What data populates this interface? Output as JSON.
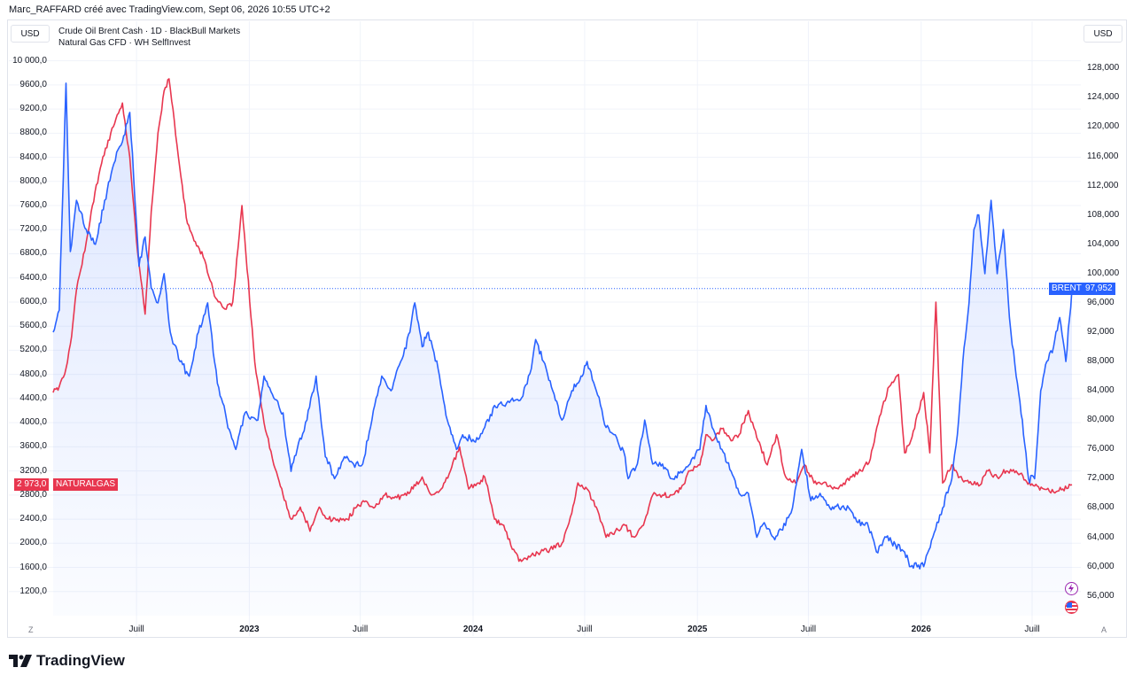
{
  "header": {
    "caption": "Marc_RAFFARD créé avec TradingView.com, Sept 06, 2026 10:55 UTC+2"
  },
  "currency": {
    "left": "USD",
    "right": "USD"
  },
  "legend": {
    "line1": "Crude Oil Brent Cash · 1D · BlackBull Markets",
    "line2": "Natural Gas CFD · WH SelfInvest"
  },
  "corners": {
    "left": "Z",
    "right": "A"
  },
  "brand": {
    "name": "TradingView"
  },
  "tags": {
    "brent_name": "BRENT",
    "brent_value": "97,952",
    "gas_value": "2 973,0",
    "gas_name": "NATURALGAS"
  },
  "colors": {
    "brent": "#2962ff",
    "gas": "#e8364f",
    "fill": "#eef2ff",
    "grid": "#f0f3fa",
    "axis": "#131722"
  },
  "chart_data": {
    "type": "line",
    "title": "",
    "left_axis": {
      "series": "Natural Gas CFD",
      "ylim": [
        800,
        10200
      ],
      "ticks": [
        1200,
        1600,
        2000,
        2400,
        2800,
        3200,
        3600,
        4000,
        4400,
        4800,
        5200,
        5600,
        6000,
        6400,
        6800,
        7200,
        7600,
        8000,
        8400,
        8800,
        9200,
        9600,
        10000
      ],
      "tick_labels": [
        "1200,0",
        "1600,0",
        "2000,0",
        "2400,0",
        "2800,0",
        "3200,0",
        "3600,0",
        "4000,0",
        "4400,0",
        "4800,0",
        "5200,0",
        "5600,0",
        "6000,0",
        "6400,0",
        "6800,0",
        "7200,0",
        "7600,0",
        "8000,0",
        "8400,0",
        "8800,0",
        "9200,0",
        "9600,0",
        "10 000,0"
      ]
    },
    "right_axis": {
      "series": "Crude Oil Brent Cash",
      "ylim": [
        53.3,
        130.7
      ],
      "ticks": [
        56,
        60,
        64,
        68,
        72,
        76,
        80,
        84,
        88,
        92,
        96,
        100,
        104,
        108,
        112,
        116,
        120,
        124,
        128
      ],
      "tick_labels": [
        "56,000",
        "60,000",
        "64,000",
        "68,000",
        "72,000",
        "76,000",
        "80,000",
        "84,000",
        "88,000",
        "92,000",
        "96,000",
        "100,000",
        "104,000",
        "108,000",
        "112,000",
        "116,000",
        "120,000",
        "124,000",
        "128,000"
      ]
    },
    "x_axis": {
      "tick_labels": [
        "Juill",
        "2023",
        "Juill",
        "2024",
        "Juill",
        "2025",
        "Juill",
        "2026",
        "Juill"
      ],
      "tick_dates": [
        "2022-07-01",
        "2023-01-01",
        "2023-07-01",
        "2024-01-01",
        "2024-07-01",
        "2025-01-01",
        "2025-07-01",
        "2026-01-01",
        "2026-07-01"
      ],
      "range": [
        "2022-02-15",
        "2026-09-04"
      ]
    },
    "grid": true,
    "series": [
      {
        "name": "Crude Oil Brent Cash",
        "axis": "right",
        "color": "#2962ff",
        "last": 97.952,
        "x": [
          "2022-02-15",
          "2022-02-25",
          "2022-03-08",
          "2022-03-15",
          "2022-03-25",
          "2022-04-10",
          "2022-04-25",
          "2022-05-10",
          "2022-05-25",
          "2022-06-08",
          "2022-06-20",
          "2022-07-05",
          "2022-07-15",
          "2022-07-25",
          "2022-08-05",
          "2022-08-15",
          "2022-08-25",
          "2022-09-10",
          "2022-09-25",
          "2022-10-10",
          "2022-10-25",
          "2022-11-10",
          "2022-11-25",
          "2022-12-10",
          "2022-12-25",
          "2023-01-15",
          "2023-01-25",
          "2023-02-10",
          "2023-02-25",
          "2023-03-10",
          "2023-03-20",
          "2023-04-05",
          "2023-04-20",
          "2023-05-05",
          "2023-05-20",
          "2023-06-05",
          "2023-06-20",
          "2023-07-05",
          "2023-07-20",
          "2023-08-05",
          "2023-08-20",
          "2023-09-05",
          "2023-09-20",
          "2023-09-28",
          "2023-10-10",
          "2023-10-20",
          "2023-11-05",
          "2023-11-20",
          "2023-12-05",
          "2023-12-15",
          "2024-01-05",
          "2024-01-20",
          "2024-02-05",
          "2024-02-20",
          "2024-03-05",
          "2024-03-20",
          "2024-04-05",
          "2024-04-12",
          "2024-04-25",
          "2024-05-10",
          "2024-05-25",
          "2024-06-10",
          "2024-06-25",
          "2024-07-05",
          "2024-07-20",
          "2024-08-05",
          "2024-08-20",
          "2024-09-05",
          "2024-09-10",
          "2024-09-25",
          "2024-10-07",
          "2024-10-20",
          "2024-11-05",
          "2024-11-20",
          "2024-12-05",
          "2024-12-20",
          "2025-01-05",
          "2025-01-15",
          "2025-01-25",
          "2025-02-10",
          "2025-02-25",
          "2025-03-10",
          "2025-03-25",
          "2025-04-08",
          "2025-04-20",
          "2025-05-05",
          "2025-05-20",
          "2025-06-05",
          "2025-06-20",
          "2025-07-05",
          "2025-07-20",
          "2025-08-05",
          "2025-08-20",
          "2025-09-05",
          "2025-09-20",
          "2025-10-05",
          "2025-10-20",
          "2025-11-05",
          "2025-11-20",
          "2025-12-05",
          "2025-12-15",
          "2026-01-05",
          "2026-01-20",
          "2026-02-05",
          "2026-02-20",
          "2026-03-01",
          "2026-03-10",
          "2026-03-20",
          "2026-03-28",
          "2026-04-05",
          "2026-04-15",
          "2026-04-25",
          "2026-05-05",
          "2026-05-15",
          "2026-05-25",
          "2026-06-05",
          "2026-06-15",
          "2026-06-25",
          "2026-07-05",
          "2026-07-15",
          "2026-07-25",
          "2026-08-05",
          "2026-08-15",
          "2026-08-25",
          "2026-09-04"
        ],
        "y": [
          92,
          95,
          126,
          103,
          110,
          106,
          104,
          110,
          115,
          118,
          122,
          101,
          105,
          98,
          96,
          100,
          92,
          88,
          86,
          92,
          96,
          85,
          80,
          76,
          81,
          80,
          86,
          83,
          81,
          73,
          76,
          80,
          86,
          75,
          72,
          75,
          74,
          74,
          80,
          86,
          84,
          88,
          92,
          96,
          90,
          92,
          87,
          80,
          76,
          78,
          77,
          79,
          82,
          82,
          83,
          83,
          87,
          91,
          88,
          84,
          80,
          84,
          86,
          88,
          84,
          79,
          78,
          75,
          72,
          74,
          80,
          74,
          74,
          72,
          73,
          74,
          76,
          82,
          79,
          76,
          73,
          70,
          70,
          64,
          66,
          64,
          65,
          68,
          76,
          69,
          70,
          68,
          68,
          68,
          66,
          66,
          62,
          64,
          63,
          62,
          60,
          60,
          64,
          68,
          72,
          78,
          88,
          96,
          106,
          108,
          100,
          110,
          100,
          106,
          94,
          86,
          80,
          72,
          72,
          84,
          88,
          90,
          94,
          88,
          97.952
        ]
      },
      {
        "name": "Natural Gas CFD",
        "axis": "left",
        "color": "#e8364f",
        "last": 2973.0,
        "x": [
          "2022-02-15",
          "2022-02-25",
          "2022-03-08",
          "2022-03-15",
          "2022-03-25",
          "2022-04-10",
          "2022-04-20",
          "2022-05-05",
          "2022-05-20",
          "2022-06-08",
          "2022-06-20",
          "2022-07-01",
          "2022-07-15",
          "2022-07-25",
          "2022-08-05",
          "2022-08-15",
          "2022-08-23",
          "2022-09-05",
          "2022-09-20",
          "2022-10-05",
          "2022-10-20",
          "2022-11-05",
          "2022-11-20",
          "2022-12-05",
          "2022-12-20",
          "2023-01-10",
          "2023-01-25",
          "2023-02-10",
          "2023-02-25",
          "2023-03-10",
          "2023-03-25",
          "2023-04-10",
          "2023-04-25",
          "2023-05-10",
          "2023-05-25",
          "2023-06-10",
          "2023-06-25",
          "2023-07-10",
          "2023-07-25",
          "2023-08-10",
          "2023-08-25",
          "2023-09-10",
          "2023-09-25",
          "2023-10-10",
          "2023-10-25",
          "2023-11-10",
          "2023-11-25",
          "2023-12-10",
          "2023-12-25",
          "2024-01-10",
          "2024-01-20",
          "2024-02-05",
          "2024-02-20",
          "2024-03-05",
          "2024-03-20",
          "2024-04-05",
          "2024-04-20",
          "2024-05-10",
          "2024-05-25",
          "2024-06-10",
          "2024-06-20",
          "2024-07-05",
          "2024-07-20",
          "2024-08-05",
          "2024-08-20",
          "2024-09-05",
          "2024-09-20",
          "2024-10-05",
          "2024-10-20",
          "2024-11-05",
          "2024-11-20",
          "2024-12-05",
          "2024-12-20",
          "2025-01-05",
          "2025-01-15",
          "2025-01-25",
          "2025-02-10",
          "2025-02-25",
          "2025-03-10",
          "2025-03-25",
          "2025-04-10",
          "2025-04-25",
          "2025-05-10",
          "2025-05-25",
          "2025-06-10",
          "2025-06-25",
          "2025-07-10",
          "2025-07-25",
          "2025-08-10",
          "2025-08-25",
          "2025-09-10",
          "2025-09-25",
          "2025-10-10",
          "2025-10-25",
          "2025-11-10",
          "2025-11-25",
          "2025-12-05",
          "2025-12-15",
          "2026-01-05",
          "2026-01-15",
          "2026-01-25",
          "2026-02-05",
          "2026-02-20",
          "2026-03-05",
          "2026-03-20",
          "2026-04-05",
          "2026-04-20",
          "2026-05-05",
          "2026-05-20",
          "2026-06-05",
          "2026-06-20",
          "2026-07-05",
          "2026-07-20",
          "2026-08-05",
          "2026-08-20",
          "2026-09-04"
        ],
        "y": [
          4500,
          4600,
          4900,
          5300,
          6200,
          7000,
          7600,
          8300,
          8800,
          9300,
          8400,
          7000,
          5800,
          7500,
          8800,
          9500,
          9700,
          8600,
          7400,
          7000,
          6700,
          6100,
          5900,
          6000,
          7600,
          5000,
          4000,
          3300,
          2800,
          2400,
          2600,
          2200,
          2600,
          2400,
          2400,
          2400,
          2600,
          2700,
          2600,
          2800,
          2750,
          2800,
          2900,
          3100,
          2800,
          2900,
          3200,
          3600,
          2900,
          3000,
          3100,
          2400,
          2300,
          1900,
          1700,
          1800,
          1850,
          1900,
          2000,
          2500,
          3000,
          2900,
          2600,
          2100,
          2200,
          2300,
          2100,
          2300,
          2800,
          2800,
          2800,
          2900,
          3200,
          3300,
          3800,
          3700,
          3900,
          3700,
          3800,
          4200,
          3700,
          3300,
          3800,
          3100,
          3000,
          3300,
          3000,
          3000,
          2900,
          2950,
          3100,
          3200,
          3400,
          4100,
          4600,
          4800,
          3500,
          3700,
          4500,
          3500,
          6000,
          3000,
          3300,
          3100,
          3000,
          2950,
          3200,
          3100,
          3200,
          3200,
          3050,
          2950,
          2900,
          2850,
          2900,
          2973
        ]
      }
    ]
  }
}
